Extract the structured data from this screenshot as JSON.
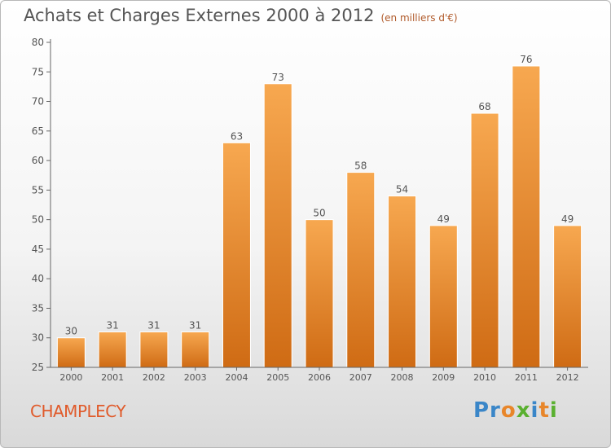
{
  "header": {
    "title": "Achats et Charges Externes 2000 à 2012",
    "subtitle": "(en milliers d'€)"
  },
  "footer": {
    "commune": "CHAMPLECY",
    "logo": "Proxiti"
  },
  "colors": {
    "bar_light": "#f6a552",
    "bar_dark": "#cf6b14",
    "axis": "#555555",
    "commune": "#e05a2a"
  },
  "chart_data": {
    "type": "bar",
    "categories": [
      "2000",
      "2001",
      "2002",
      "2003",
      "2004",
      "2005",
      "2006",
      "2007",
      "2008",
      "2009",
      "2010",
      "2011",
      "2012"
    ],
    "values": [
      30,
      31,
      31,
      31,
      63,
      73,
      50,
      58,
      54,
      49,
      68,
      76,
      49
    ],
    "title": "Achats et Charges Externes 2000 à 2012",
    "subtitle": "(en milliers d'€)",
    "ylim": [
      25,
      80
    ],
    "yticks": [
      25,
      30,
      35,
      40,
      45,
      50,
      55,
      60,
      65,
      70,
      75,
      80
    ],
    "grid": false,
    "data_labels": true
  }
}
